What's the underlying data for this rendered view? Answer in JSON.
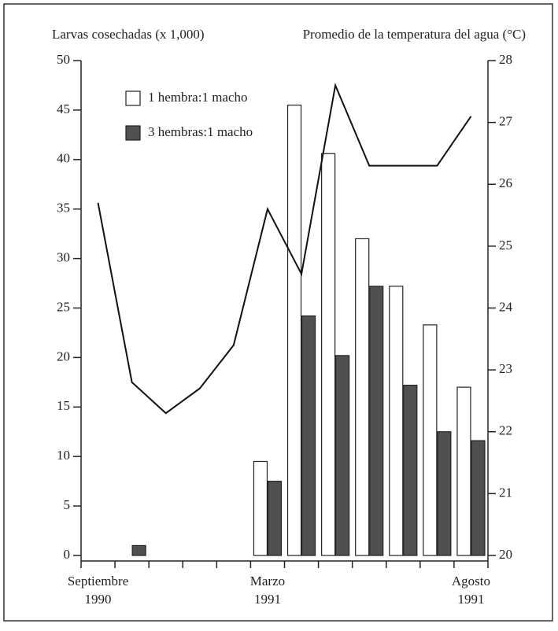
{
  "chart_data": {
    "type": "bar",
    "ylabel": "Larvas cosechadas (x 1,000)",
    "y2label": "Promedio de la temperatura del agua (°C)",
    "categories": [
      "Septiembre\n1990",
      null,
      null,
      null,
      null,
      "Marzo\n1991",
      null,
      null,
      null,
      null,
      null,
      "Agosto\n1991"
    ],
    "series": [
      {
        "name": "1 hembra:1 macho",
        "color": "#ffffff",
        "type": "bar",
        "values": [
          null,
          null,
          null,
          null,
          null,
          9.5,
          45.5,
          40.6,
          32,
          27.2,
          23.3,
          17
        ]
      },
      {
        "name": "3 hembras:1 macho",
        "color": "#505050",
        "type": "bar",
        "values": [
          null,
          1,
          null,
          null,
          null,
          7.5,
          24.2,
          20.2,
          27.2,
          17.2,
          12.5,
          11.6
        ]
      },
      {
        "color": "#111111",
        "type": "line",
        "axis": "y2",
        "values": [
          25.7,
          22.8,
          22.3,
          22.7,
          23.4,
          25.6,
          24.55,
          27.6,
          26.3,
          26.3,
          26.3,
          27.1
        ]
      }
    ],
    "ylim": [
      0,
      50
    ],
    "yticks": [
      0,
      5,
      10,
      15,
      20,
      25,
      30,
      35,
      40,
      45,
      50
    ],
    "y2lim": [
      20,
      28
    ],
    "y2ticks": [
      20,
      21,
      22,
      23,
      24,
      25,
      26,
      27,
      28
    ],
    "legend": "upper left",
    "grid": false
  }
}
